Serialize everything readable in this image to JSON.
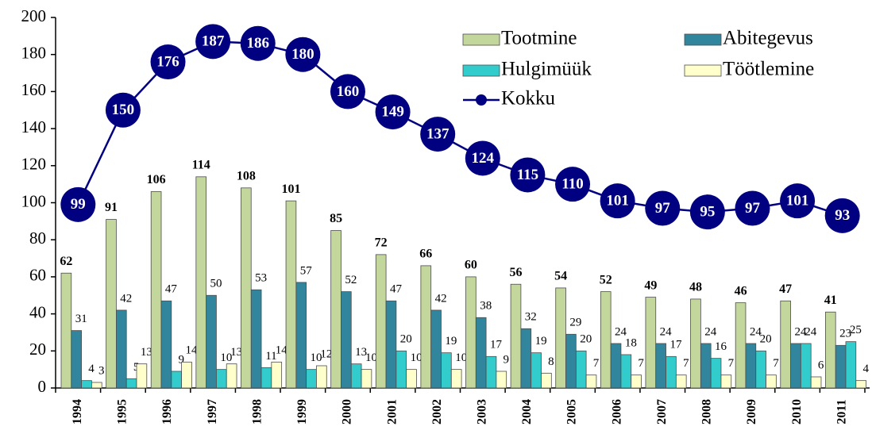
{
  "chart_data": {
    "type": "bar",
    "categories": [
      "1994",
      "1995",
      "1996",
      "1997",
      "1998",
      "1999",
      "2000",
      "2001",
      "2002",
      "2003",
      "2004",
      "2005",
      "2006",
      "2007",
      "2008",
      "2009",
      "2010",
      "2011"
    ],
    "series": [
      {
        "name": "Tootmine",
        "color": "#c3d69b",
        "values": [
          62,
          91,
          106,
          114,
          108,
          101,
          85,
          72,
          66,
          60,
          56,
          54,
          52,
          49,
          48,
          46,
          47,
          41
        ]
      },
      {
        "name": "Abitegevus",
        "color": "#31859c",
        "values": [
          31,
          42,
          47,
          50,
          53,
          57,
          52,
          47,
          42,
          38,
          32,
          29,
          24,
          24,
          24,
          24,
          24,
          23
        ]
      },
      {
        "name": "Hulgimüük",
        "color": "#33cccc",
        "values": [
          4,
          5,
          9,
          10,
          11,
          10,
          13,
          20,
          19,
          17,
          19,
          20,
          18,
          17,
          16,
          20,
          24,
          25
        ]
      },
      {
        "name": "Töötlemine",
        "color": "#ffffcc",
        "values": [
          3,
          13,
          14,
          13,
          14,
          12,
          10,
          10,
          10,
          9,
          8,
          7,
          7,
          7,
          7,
          7,
          6,
          4
        ]
      },
      {
        "name": "Kokku",
        "type": "line",
        "color": "#000080",
        "values": [
          99,
          150,
          176,
          187,
          186,
          180,
          160,
          149,
          137,
          124,
          115,
          110,
          101,
          97,
          95,
          97,
          101,
          93
        ]
      }
    ],
    "ylim": [
      0,
      200
    ],
    "yticks": [
      0,
      20,
      40,
      60,
      80,
      100,
      120,
      140,
      160,
      180,
      200
    ],
    "grid": false,
    "legend": "upper right"
  }
}
